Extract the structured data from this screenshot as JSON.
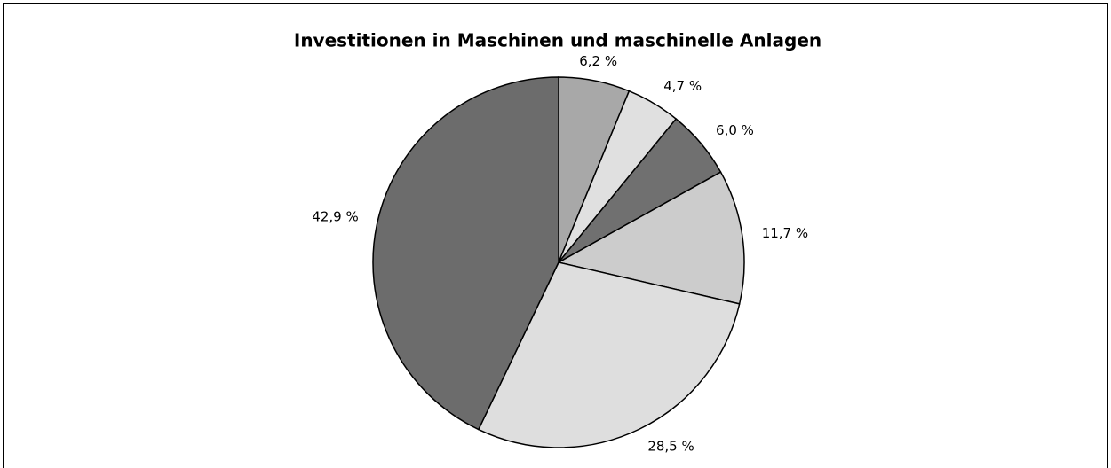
{
  "chart_data": {
    "type": "pie",
    "title": "Investitionen in Maschinen und maschinelle Anlagen",
    "values": [
      6.2,
      4.7,
      6.0,
      11.7,
      28.5,
      42.9
    ],
    "value_labels": [
      "6,2 %",
      "4,7 %",
      "6,0 %",
      "11,7 %",
      "28,5 %",
      "42,9 %"
    ],
    "colors": [
      "#a8a8a8",
      "#e0e0e0",
      "#707070",
      "#cccccc",
      "#dedede",
      "#6c6c6c"
    ]
  }
}
